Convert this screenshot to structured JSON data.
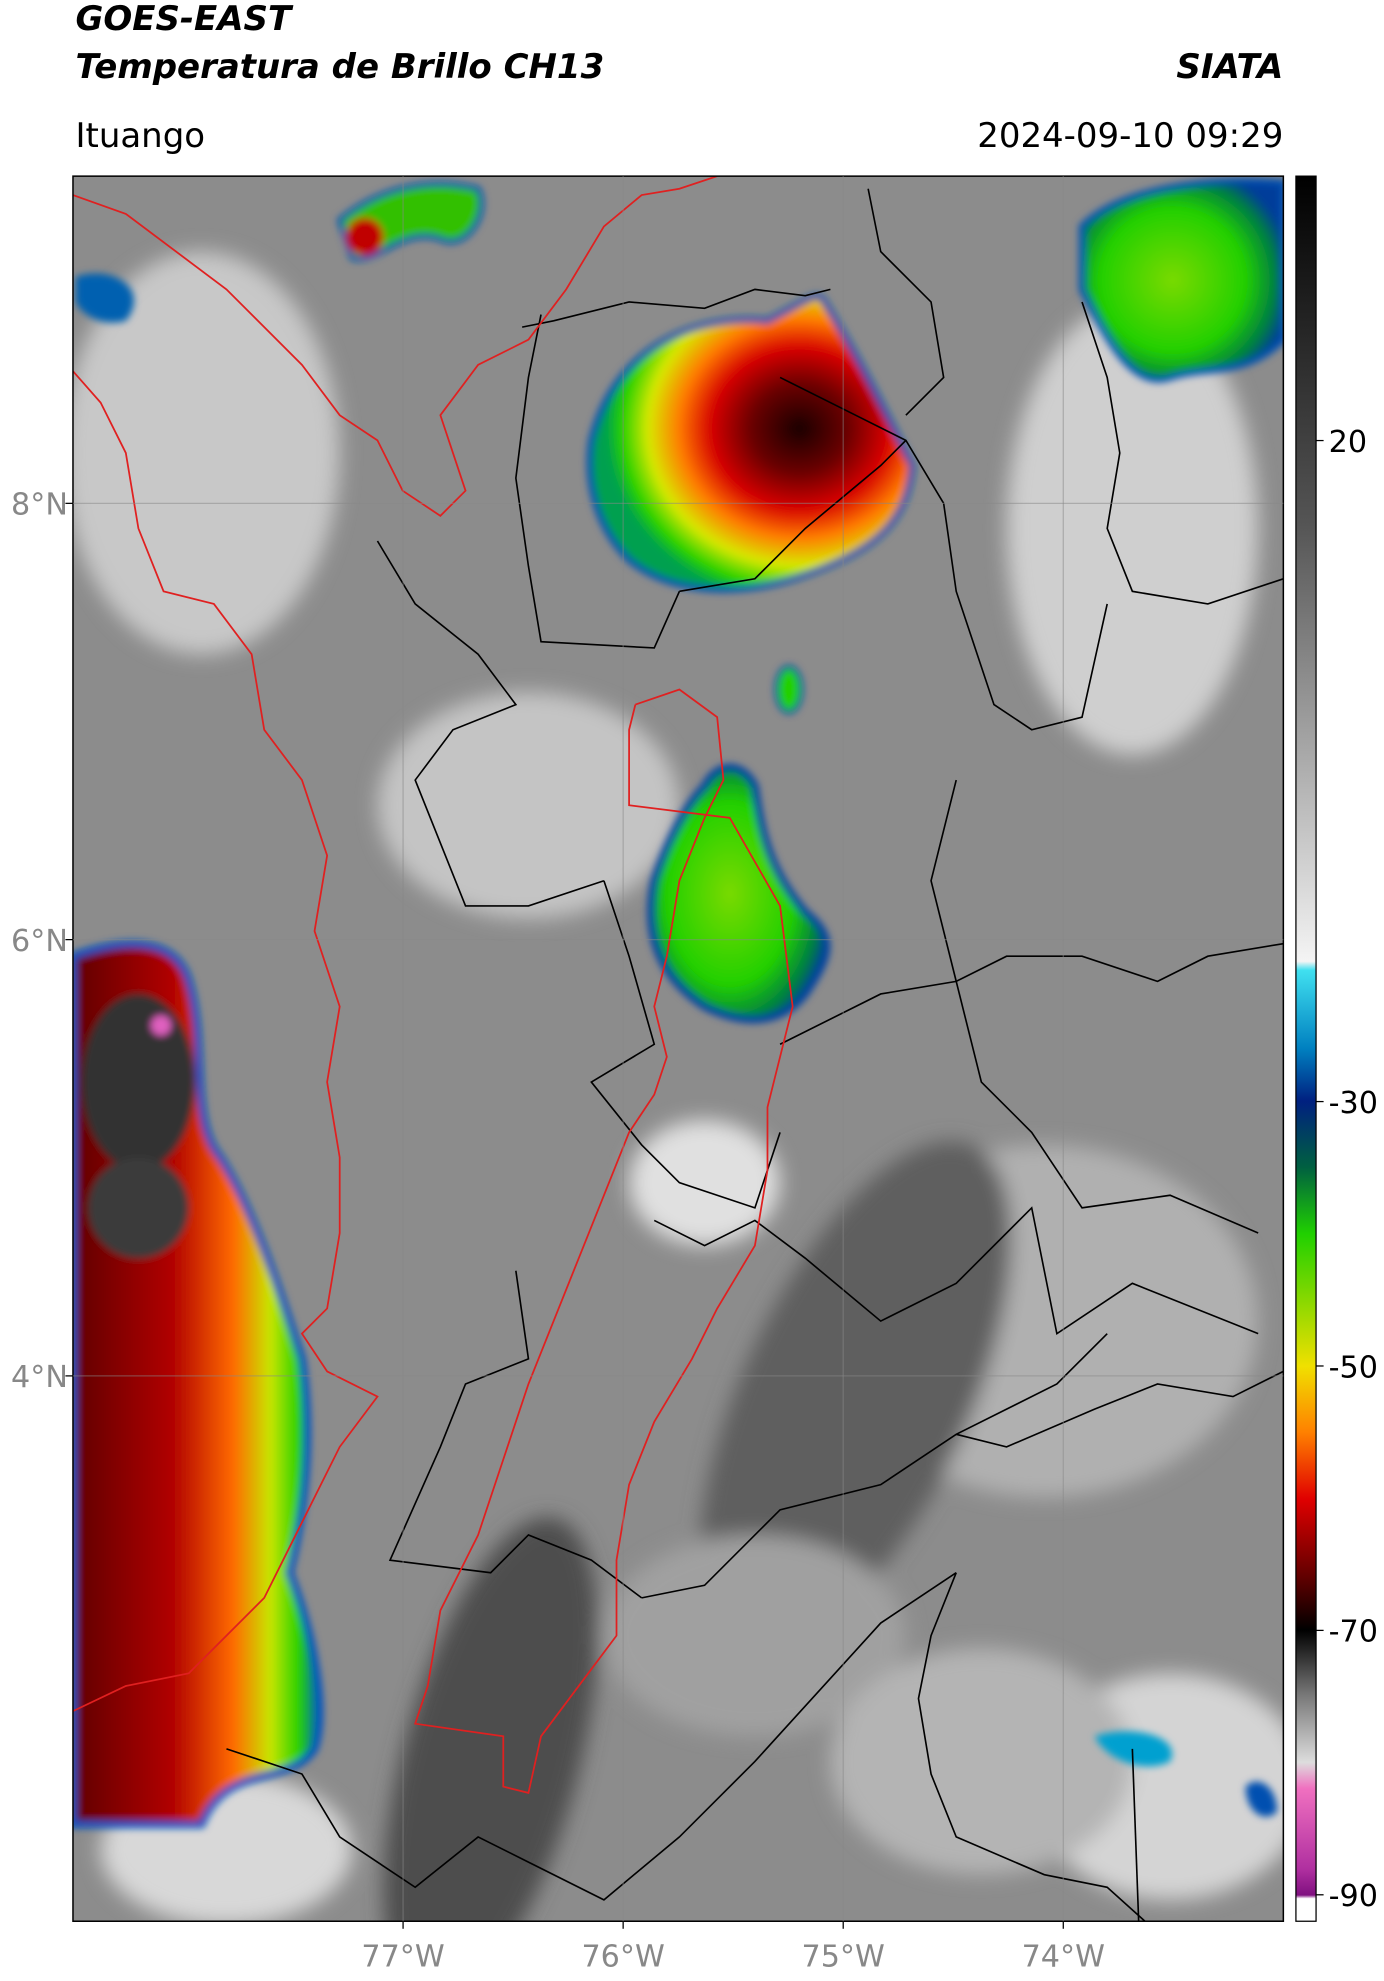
{
  "header": {
    "title": "GOES-EAST",
    "subtitle": "Temperatura de Brillo CH13",
    "source": "SIATA",
    "location": "Ituango",
    "datetime": "2024-09-10 09:29"
  },
  "map": {
    "xlim": [
      -78.5,
      -73
    ],
    "ylim": [
      1.5,
      9.5
    ],
    "xticks": [
      {
        "value": -77,
        "label": "77°W"
      },
      {
        "value": -76,
        "label": "76°W"
      },
      {
        "value": -75,
        "label": "75°W"
      },
      {
        "value": -74,
        "label": "74°W"
      }
    ],
    "yticks": [
      {
        "value": 8,
        "label": "8°N"
      },
      {
        "value": 6,
        "label": "6°N"
      },
      {
        "value": 4,
        "label": "4°N"
      }
    ],
    "grid": true
  },
  "colorbar": {
    "lim": [
      -92,
      40
    ],
    "ticks": [
      20,
      -30,
      -50,
      -70,
      -90
    ]
  }
}
